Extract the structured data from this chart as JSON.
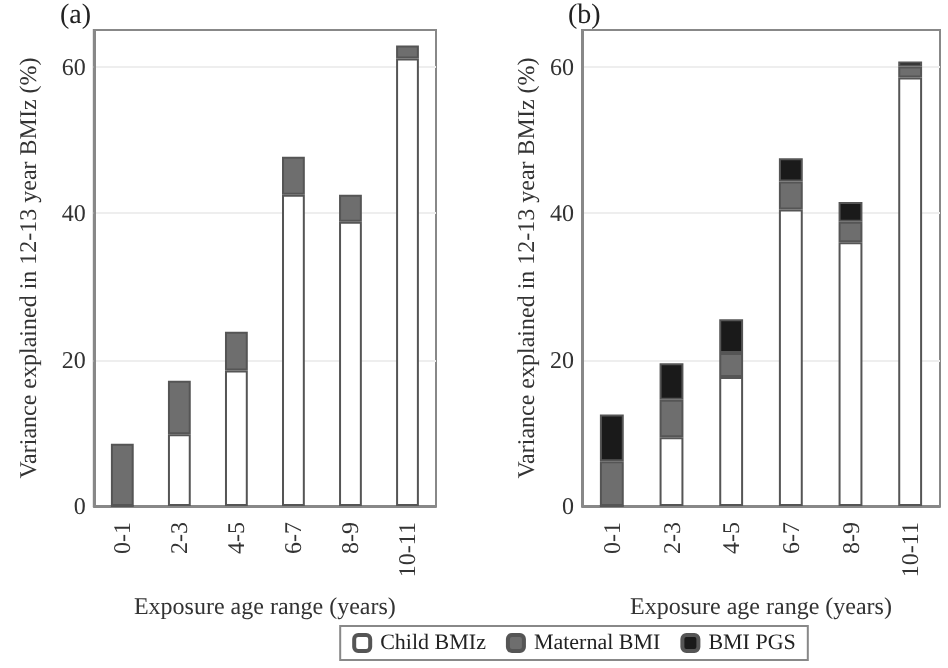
{
  "chart_data": [
    {
      "type": "bar",
      "title": "(a)",
      "xlabel": "Exposure age range (years)",
      "ylabel": "Variance explained in 12-13 year BMIz (%)",
      "categories": [
        "0-1",
        "2-3",
        "4-5",
        "6-7",
        "8-9",
        "10-11"
      ],
      "stacked": true,
      "series": [
        {
          "color": "#ffffff",
          "values": [
            0,
            9.8,
            18.5,
            42.5,
            38.8,
            61.1
          ]
        },
        {
          "color": "#6e6e6e",
          "values": [
            8.5,
            7.3,
            5.3,
            5.2,
            3.7,
            1.8
          ]
        }
      ],
      "ylim": [
        0,
        65
      ],
      "yticks": [
        0,
        20,
        40,
        60
      ],
      "grid": "y",
      "legend": false
    },
    {
      "type": "bar",
      "title": "(b)",
      "xlabel": "Exposure age range (years)",
      "ylabel": "Variance explained in 12-13 year BMIz (%)",
      "categories": [
        "0-1",
        "2-3",
        "4-5",
        "6-7",
        "8-9",
        "10-11"
      ],
      "stacked": true,
      "series": [
        {
          "name": "Child BMIz",
          "color": "#ffffff",
          "values": [
            0,
            9.4,
            17.6,
            40.5,
            36.0,
            58.5
          ]
        },
        {
          "name": "Maternal BMI",
          "color": "#6e6e6e",
          "values": [
            6.1,
            5.1,
            3.3,
            3.8,
            2.8,
            1.5
          ]
        },
        {
          "name": "BMI PGS",
          "color": "#1a1a1a",
          "values": [
            6.4,
            5.0,
            4.6,
            3.2,
            2.7,
            0.7
          ]
        }
      ],
      "ylim": [
        0,
        65
      ],
      "yticks": [
        0,
        20,
        40,
        60
      ],
      "grid": "y",
      "legend": "bottom"
    }
  ]
}
